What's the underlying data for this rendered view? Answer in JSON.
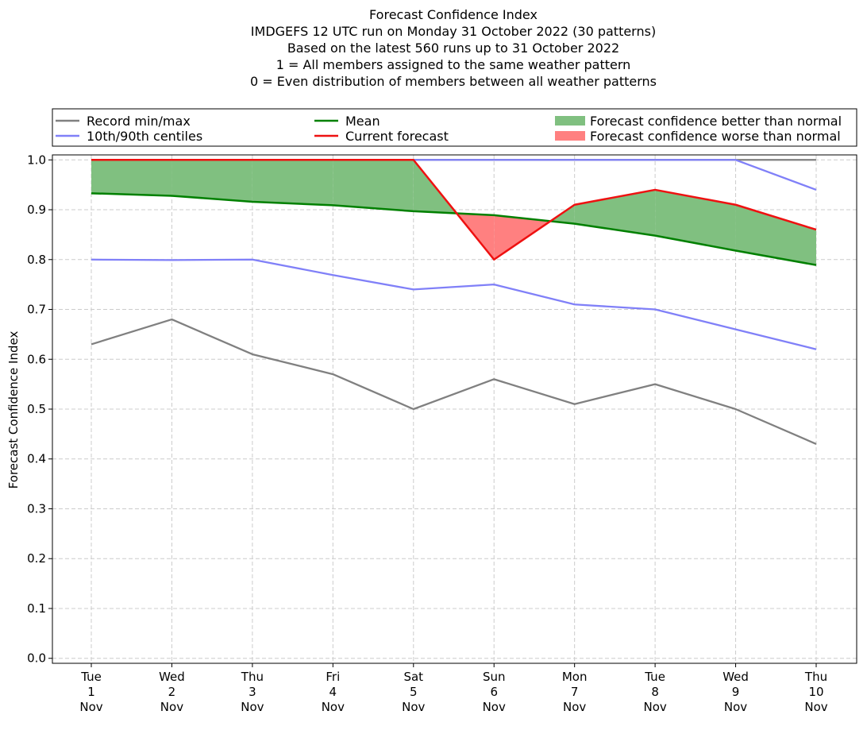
{
  "chart_data": {
    "type": "line",
    "title_lines": [
      "Forecast Confidence Index",
      "IMDGEFS 12 UTC run on Monday 31 October 2022 (30 patterns)",
      "Based on the latest 560 runs up to 31 October 2022",
      "1 = All members assigned to the same weather pattern",
      "0 = Even distribution of members between all weather patterns"
    ],
    "ylabel": "Forecast Confidence Index",
    "ylim": [
      -0.01,
      1.01
    ],
    "yticks": [
      "0.0",
      "0.1",
      "0.2",
      "0.3",
      "0.4",
      "0.5",
      "0.6",
      "0.7",
      "0.8",
      "0.9",
      "1.0"
    ],
    "categories": [
      [
        "Tue",
        "1",
        "Nov"
      ],
      [
        "Wed",
        "2",
        "Nov"
      ],
      [
        "Thu",
        "3",
        "Nov"
      ],
      [
        "Fri",
        "4",
        "Nov"
      ],
      [
        "Sat",
        "5",
        "Nov"
      ],
      [
        "Sun",
        "6",
        "Nov"
      ],
      [
        "Mon",
        "7",
        "Nov"
      ],
      [
        "Tue",
        "8",
        "Nov"
      ],
      [
        "Wed",
        "9",
        "Nov"
      ],
      [
        "Thu",
        "10",
        "Nov"
      ]
    ],
    "grid": true,
    "legend_position": "top",
    "legend": [
      {
        "label": "Record min/max",
        "kind": "line",
        "color": "#808080"
      },
      {
        "label": "10th/90th centiles",
        "kind": "line",
        "color": "#8080f8"
      },
      {
        "label": "Mean",
        "kind": "line",
        "color": "#008000"
      },
      {
        "label": "Current forecast",
        "kind": "line",
        "color": "#ee1111"
      },
      {
        "label": "Forecast confidence better than normal",
        "kind": "patch",
        "color": "#80c080"
      },
      {
        "label": "Forecast confidence worse than normal",
        "kind": "patch",
        "color": "#ff8080"
      }
    ],
    "series": [
      {
        "name": "Record min/max",
        "role": "record_min",
        "color": "#808080",
        "values": [
          0.63,
          0.68,
          0.61,
          0.57,
          0.5,
          0.56,
          0.51,
          0.55,
          0.5,
          0.43
        ]
      },
      {
        "name": "Record min/max",
        "role": "record_max",
        "color": "#808080",
        "values": [
          1.0,
          1.0,
          1.0,
          1.0,
          1.0,
          1.0,
          1.0,
          1.0,
          1.0,
          1.0
        ]
      },
      {
        "name": "10th/90th centiles",
        "role": "p10",
        "color": "#8080f8",
        "values": [
          0.8,
          0.799,
          0.8,
          0.769,
          0.74,
          0.75,
          0.71,
          0.7,
          0.66,
          0.62
        ]
      },
      {
        "name": "10th/90th centiles",
        "role": "p90",
        "color": "#8080f8",
        "values": [
          1.0,
          1.0,
          1.0,
          1.0,
          1.0,
          1.0,
          1.0,
          1.0,
          1.0,
          0.94
        ]
      },
      {
        "name": "Mean",
        "role": "mean",
        "color": "#008000",
        "values": [
          0.933,
          0.928,
          0.916,
          0.909,
          0.897,
          0.889,
          0.872,
          0.848,
          0.818,
          0.789
        ]
      },
      {
        "name": "Current forecast",
        "role": "current",
        "color": "#ee1111",
        "values": [
          1.0,
          1.0,
          1.0,
          1.0,
          1.0,
          0.8,
          0.91,
          0.94,
          0.91,
          0.86
        ]
      }
    ],
    "fill_colors": {
      "better": "#80c080",
      "worse": "#ff8080"
    }
  }
}
